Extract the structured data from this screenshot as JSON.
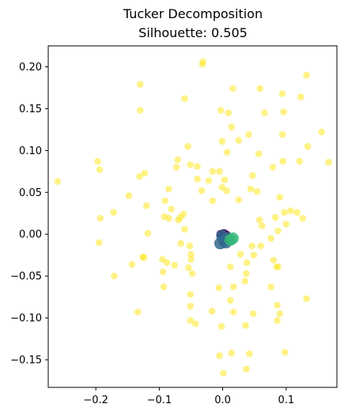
{
  "chart_data": {
    "type": "scatter",
    "title": "Tucker Decomposition",
    "subtitle": "Silhouette: 0.505",
    "xlabel": "",
    "ylabel": "",
    "xlim": [
      -0.275,
      0.18
    ],
    "ylim": [
      -0.183,
      0.225
    ],
    "xticks": [
      -0.2,
      -0.1,
      0.0,
      0.1
    ],
    "xtick_labels": [
      "−0.2",
      "−0.1",
      "0.0",
      "0.1"
    ],
    "yticks": [
      -0.15,
      -0.1,
      -0.05,
      0.0,
      0.05,
      0.1,
      0.15,
      0.2
    ],
    "ytick_labels": [
      "−0.15",
      "−0.10",
      "−0.05",
      "0.00",
      "0.05",
      "0.10",
      "0.15",
      "0.20"
    ],
    "grid": false,
    "legend": "none",
    "series": [
      {
        "color": "#fde725",
        "alpha": 0.55,
        "marker_size": "small",
        "points": [
          [
            -0.031,
            0.206
          ],
          [
            -0.032,
            0.203
          ],
          [
            0.059,
            0.174
          ],
          [
            0.094,
            0.168
          ],
          [
            0.132,
            0.19
          ],
          [
            0.016,
            0.174
          ],
          [
            -0.13,
            0.179
          ],
          [
            -0.06,
            0.162
          ],
          [
            0.123,
            0.164
          ],
          [
            -0.13,
            0.148
          ],
          [
            -0.003,
            0.148
          ],
          [
            0.009,
            0.145
          ],
          [
            0.066,
            0.145
          ],
          [
            0.096,
            0.146
          ],
          [
            0.014,
            0.128
          ],
          [
            0.156,
            0.122
          ],
          [
            0.041,
            0.119
          ],
          [
            -0.001,
            0.111
          ],
          [
            0.025,
            0.112
          ],
          [
            0.094,
            0.119
          ],
          [
            -0.055,
            0.105
          ],
          [
            0.134,
            0.105
          ],
          [
            0.007,
            0.098
          ],
          [
            0.057,
            0.096
          ],
          [
            -0.197,
            0.087
          ],
          [
            -0.071,
            0.089
          ],
          [
            0.095,
            0.087
          ],
          [
            0.121,
            0.087
          ],
          [
            0.167,
            0.086
          ],
          [
            -0.051,
            0.083
          ],
          [
            -0.073,
            0.08
          ],
          [
            -0.04,
            0.081
          ],
          [
            0.079,
            0.08
          ],
          [
            -0.194,
            0.077
          ],
          [
            -0.123,
            0.073
          ],
          [
            -0.131,
            0.069
          ],
          [
            -0.016,
            0.075
          ],
          [
            -0.005,
            0.075
          ],
          [
            0.047,
            0.07
          ],
          [
            0.003,
            0.065
          ],
          [
            -0.04,
            0.066
          ],
          [
            -0.022,
            0.064
          ],
          [
            -0.26,
            0.063
          ],
          [
            -0.085,
            0.054
          ],
          [
            0.044,
            0.054
          ],
          [
            -0.148,
            0.046
          ],
          [
            -0.033,
            0.052
          ],
          [
            -0.001,
            0.056
          ],
          [
            0.006,
            0.052
          ],
          [
            0.054,
            0.051
          ],
          [
            -0.016,
            0.04
          ],
          [
            -0.091,
            0.04
          ],
          [
            0.025,
            0.041
          ],
          [
            0.09,
            0.044
          ],
          [
            -0.12,
            0.034
          ],
          [
            -0.081,
            0.03
          ],
          [
            -0.092,
            0.021
          ],
          [
            -0.067,
            0.02
          ],
          [
            0.107,
            0.028
          ],
          [
            0.117,
            0.026
          ],
          [
            0.126,
            0.019
          ],
          [
            -0.172,
            0.026
          ],
          [
            -0.193,
            0.019
          ],
          [
            -0.085,
            0.019
          ],
          [
            -0.062,
            0.024
          ],
          [
            -0.07,
            0.017
          ],
          [
            0.058,
            0.017
          ],
          [
            0.083,
            0.02
          ],
          [
            0.097,
            0.026
          ],
          [
            -0.06,
            0.006
          ],
          [
            0.062,
            0.01
          ],
          [
            0.087,
            0.004
          ],
          [
            0.1,
            0.012
          ],
          [
            -0.118,
            0.001
          ],
          [
            -0.195,
            -0.01
          ],
          [
            -0.066,
            -0.011
          ],
          [
            0.076,
            -0.005
          ],
          [
            -0.052,
            -0.014
          ],
          [
            -0.05,
            -0.024
          ],
          [
            0.046,
            -0.014
          ],
          [
            0.06,
            -0.014
          ],
          [
            -0.126,
            -0.027
          ],
          [
            -0.124,
            -0.028
          ],
          [
            -0.05,
            -0.03
          ],
          [
            0.028,
            -0.024
          ],
          [
            0.049,
            -0.025
          ],
          [
            -0.095,
            -0.03
          ],
          [
            -0.088,
            -0.034
          ],
          [
            0.038,
            -0.034
          ],
          [
            0.08,
            -0.031
          ],
          [
            0.012,
            -0.039
          ],
          [
            -0.143,
            -0.036
          ],
          [
            -0.076,
            -0.037
          ],
          [
            -0.054,
            -0.04
          ],
          [
            0.085,
            -0.039
          ],
          [
            0.087,
            -0.039
          ],
          [
            0.037,
            -0.047
          ],
          [
            -0.094,
            -0.045
          ],
          [
            -0.048,
            -0.047
          ],
          [
            -0.171,
            -0.05
          ],
          [
            0.035,
            -0.056
          ],
          [
            -0.093,
            -0.063
          ],
          [
            0.017,
            -0.063
          ],
          [
            0.076,
            -0.063
          ],
          [
            -0.051,
            -0.072
          ],
          [
            -0.006,
            -0.064
          ],
          [
            0.132,
            -0.077
          ],
          [
            -0.051,
            -0.086
          ],
          [
            0.012,
            -0.079
          ],
          [
            0.086,
            -0.085
          ],
          [
            -0.134,
            -0.093
          ],
          [
            -0.017,
            -0.092
          ],
          [
            -0.051,
            -0.103
          ],
          [
            0.017,
            -0.093
          ],
          [
            0.048,
            -0.095
          ],
          [
            0.09,
            -0.095
          ],
          [
            0.086,
            -0.103
          ],
          [
            -0.043,
            -0.107
          ],
          [
            0.036,
            -0.109
          ],
          [
            -0.002,
            -0.11
          ],
          [
            0.098,
            -0.141
          ],
          [
            0.014,
            -0.142
          ],
          [
            -0.005,
            -0.145
          ],
          [
            0.042,
            -0.143
          ],
          [
            0.037,
            -0.161
          ],
          [
            0.001,
            -0.166
          ]
        ]
      },
      {
        "color": "#440154",
        "alpha": 0.85,
        "marker_size": "medium",
        "points": [
          [
            -0.003,
            0.0
          ],
          [
            0.002,
            0.001
          ],
          [
            0.006,
            -0.001
          ],
          [
            -0.001,
            -0.003
          ],
          [
            0.004,
            -0.004
          ]
        ]
      },
      {
        "color": "#31688e",
        "alpha": 0.85,
        "marker_size": "large",
        "points": [
          [
            -0.004,
            -0.011
          ],
          [
            0.002,
            -0.008
          ],
          [
            0.007,
            -0.005
          ],
          [
            -0.001,
            -0.002
          ],
          [
            0.005,
            -0.01
          ]
        ]
      },
      {
        "color": "#35b779",
        "alpha": 0.85,
        "marker_size": "large",
        "points": [
          [
            0.012,
            -0.007
          ],
          [
            0.016,
            -0.005
          ]
        ]
      }
    ]
  }
}
